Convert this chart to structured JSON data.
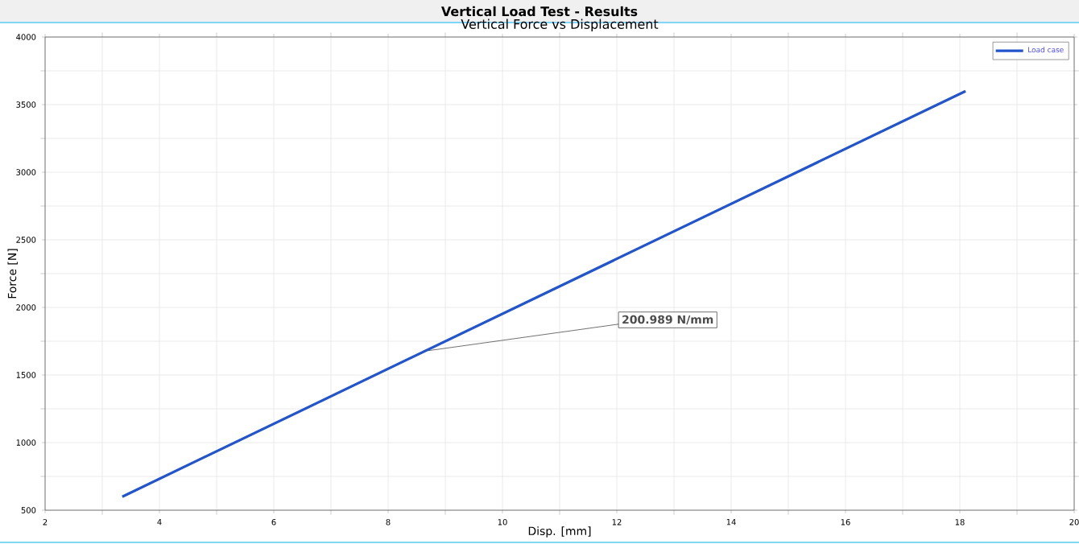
{
  "chart_data": {
    "type": "line",
    "title": "Vertical Load Test - Results",
    "subtitle": "Vertical Force vs Displacement",
    "xlabel": "Disp. [mm]",
    "ylabel": "Force [N]",
    "x": [
      3.35,
      18.1
    ],
    "series": [
      {
        "name": "Load case",
        "color": "#2255cc",
        "values": [
          600,
          3600
        ]
      }
    ],
    "xlim": [
      2,
      20
    ],
    "xticks": [
      2,
      4,
      6,
      8,
      10,
      12,
      14,
      16,
      18,
      20
    ],
    "ylim": [
      500,
      4000
    ],
    "yticks": [
      500,
      1000,
      1500,
      2000,
      2500,
      3000,
      3500,
      4000
    ],
    "grid": true,
    "legend": "top right",
    "marker": "none",
    "line_style": "solid",
    "annotations": [
      {
        "text": "200.989 N/mm",
        "x": 8.7,
        "y": 1680
      }
    ]
  }
}
